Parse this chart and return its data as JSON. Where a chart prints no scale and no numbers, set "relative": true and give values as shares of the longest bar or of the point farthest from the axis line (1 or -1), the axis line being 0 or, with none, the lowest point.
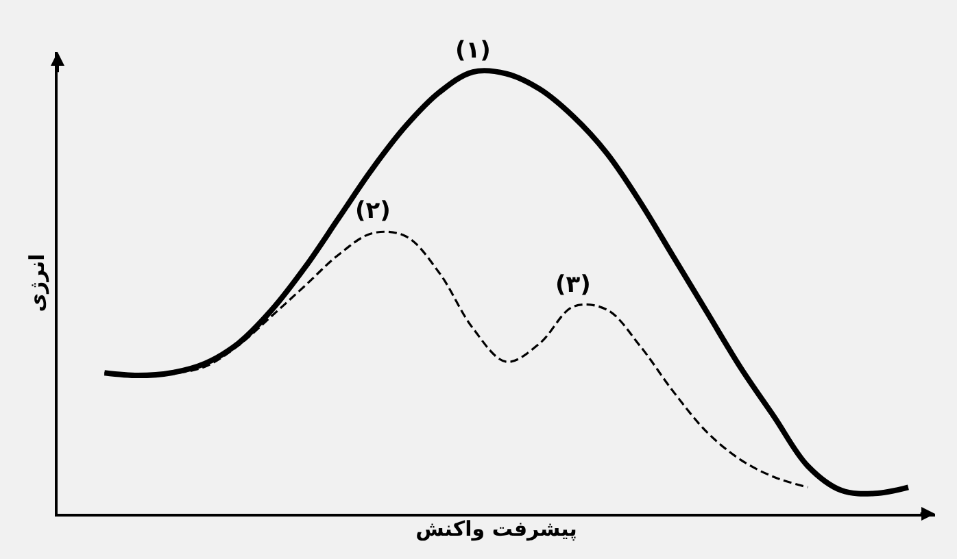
{
  "chart_data": {
    "type": "line",
    "relative": true,
    "xlabel": "پیشرفت واکنش",
    "ylabel": "انرژی",
    "categories": [
      null,
      null,
      null,
      null,
      null,
      null,
      null,
      null,
      null,
      null,
      null,
      null,
      null,
      null,
      null,
      null,
      null,
      null,
      null,
      null,
      null,
      null,
      null,
      null,
      null
    ],
    "series": [
      {
        "color": "#000000",
        "line_style": "solid",
        "values": [
          0.319,
          0.313,
          0.319,
          0.34,
          0.386,
          0.462,
          0.559,
          0.67,
          0.781,
          0.878,
          0.954,
          1,
          0.996,
          0.961,
          0.899,
          0.816,
          0.705,
          0.58,
          0.455,
          0.33,
          0.219,
          0.108,
          0.053,
          0.046,
          0.06
        ]
      },
      {
        "color": "#000000",
        "line_style": "dashed",
        "values": [
          0.319,
          0.313,
          0.317,
          0.333,
          0.381,
          0.448,
          0.517,
          0.587,
          0.635,
          0.628,
          0.545,
          0.42,
          0.344,
          0.386,
          0.469,
          0.462,
          0.379,
          0.275,
          0.184,
          0.122,
          0.083,
          0.06,
          null,
          null,
          null
        ]
      }
    ],
    "annotations": [
      {
        "text": "(۱)",
        "y": 1
      },
      {
        "text": "(۲)",
        "y": 0.635
      },
      {
        "text": "(۳)",
        "y": 0.469
      }
    ],
    "marker": "none",
    "grid": false
  }
}
